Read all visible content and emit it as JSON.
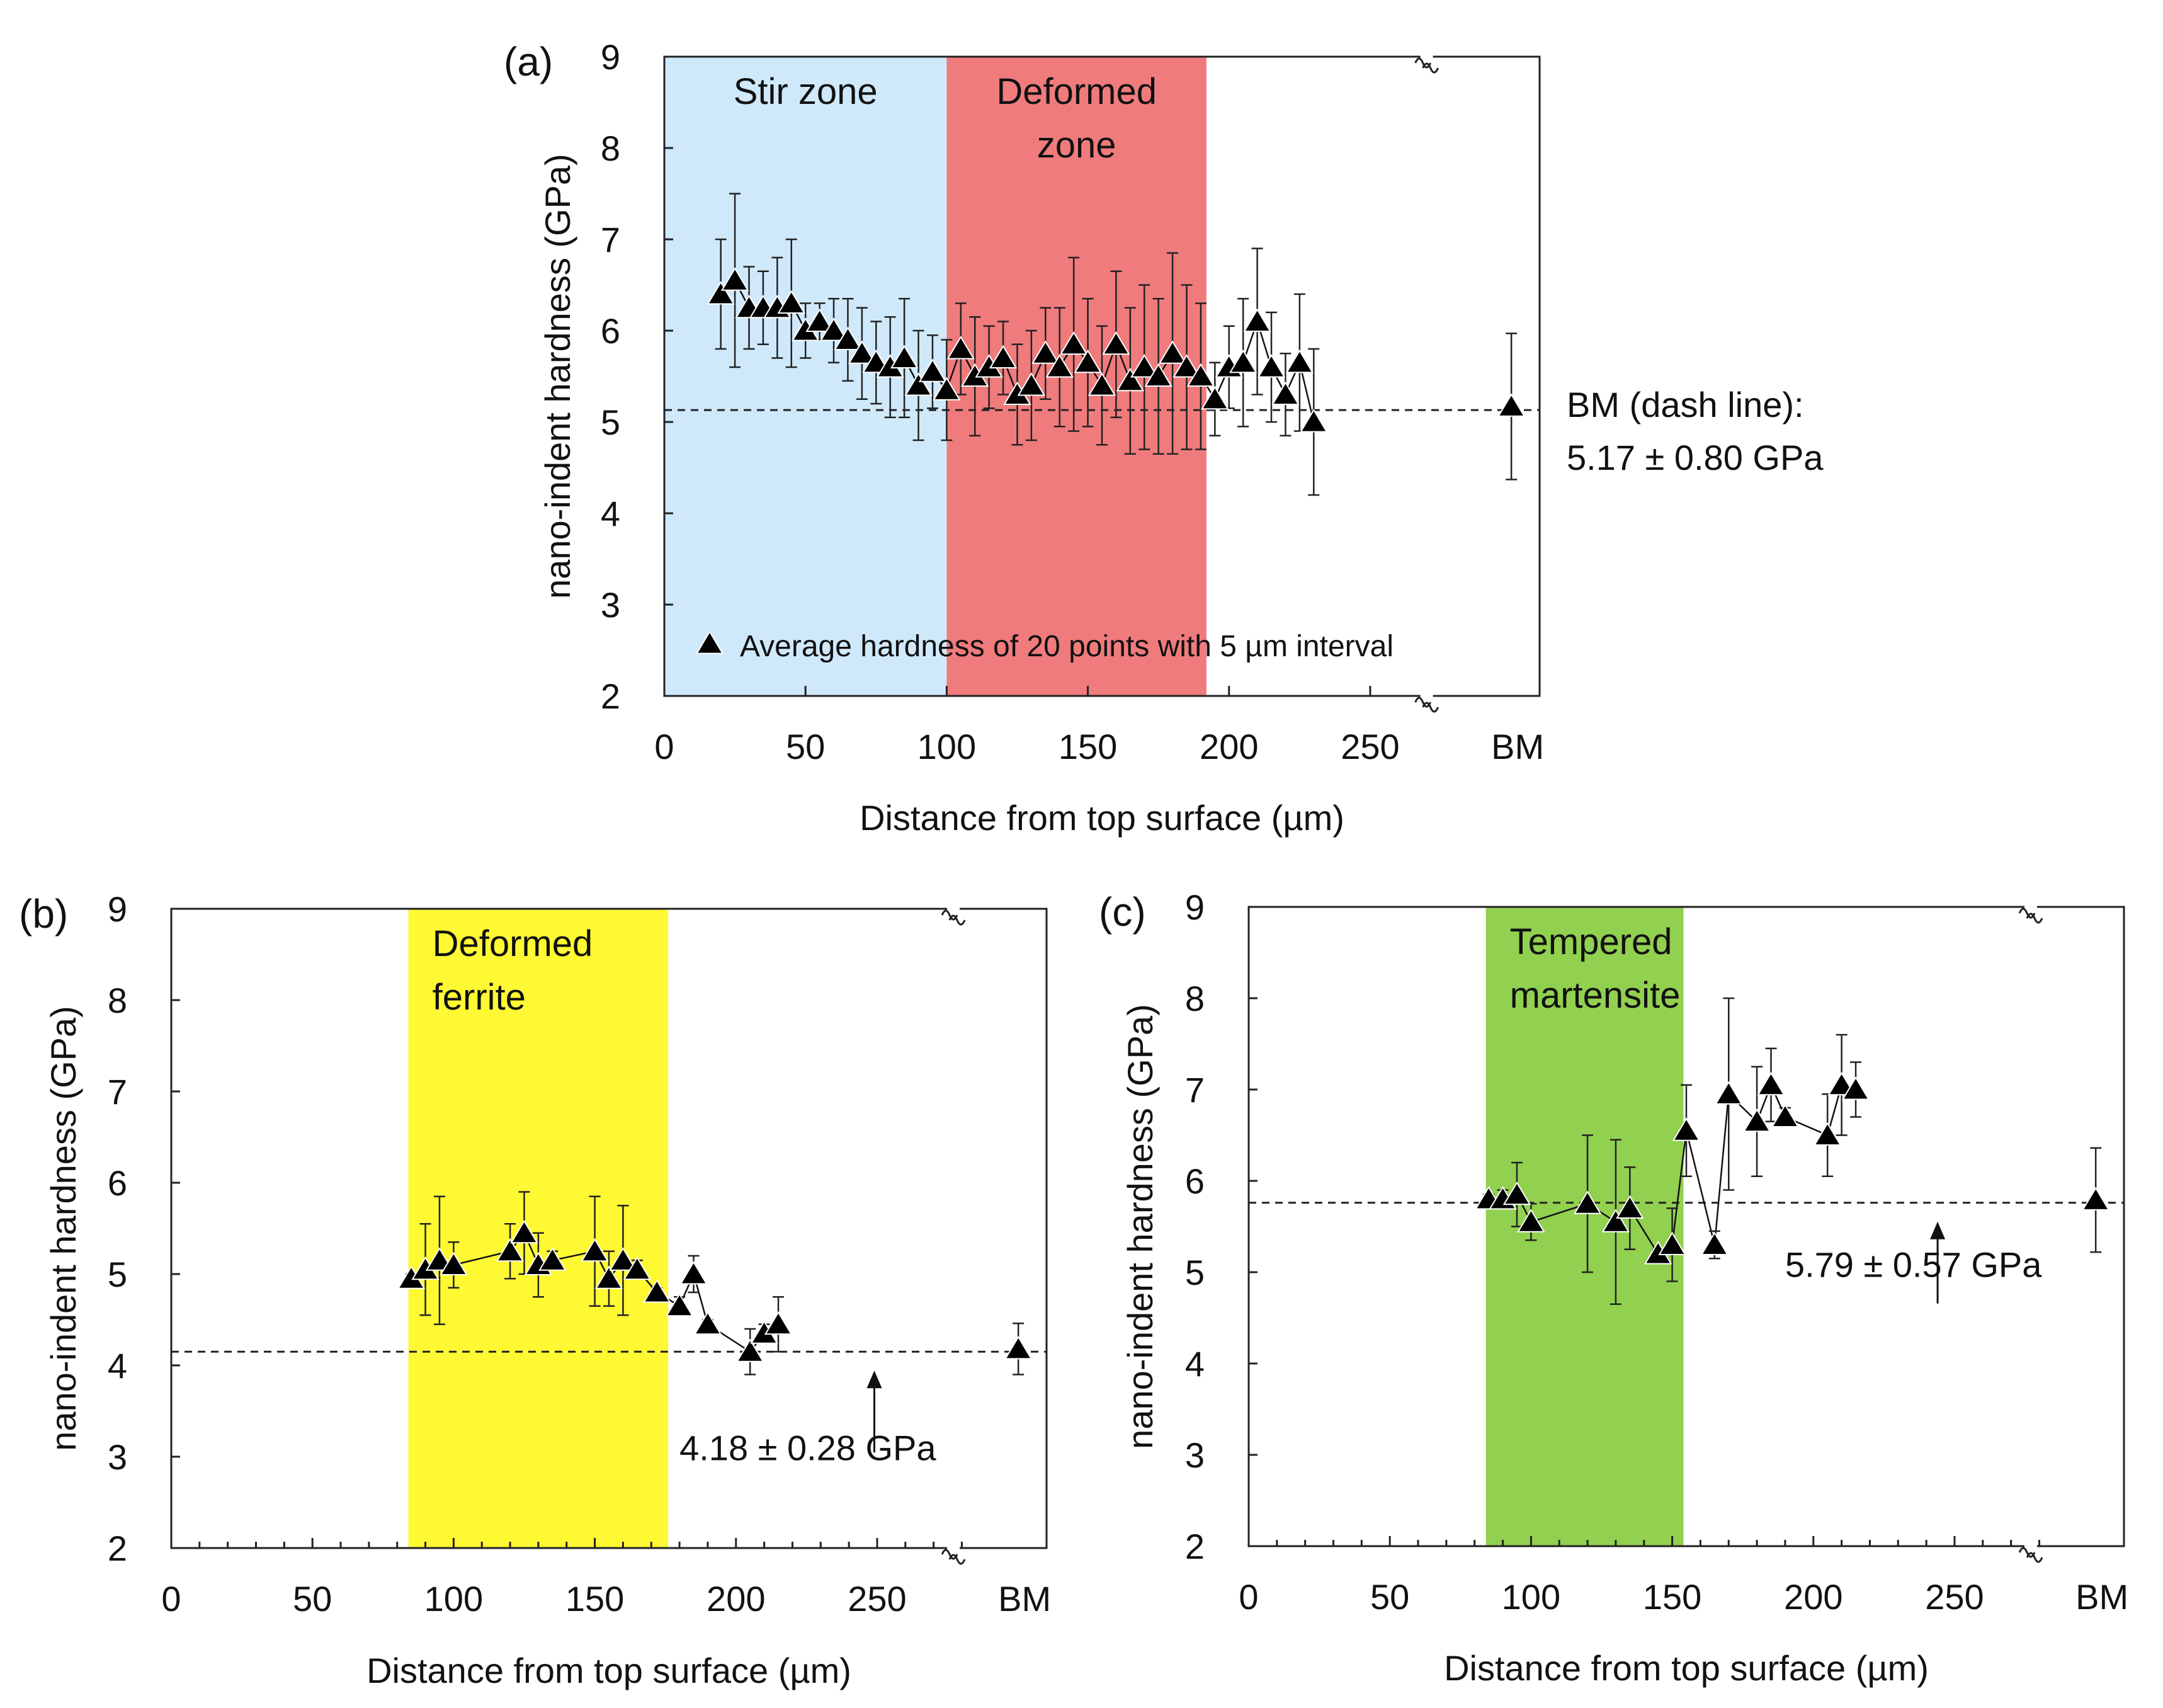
{
  "chart_data": [
    {
      "id": "a",
      "type": "scatter",
      "panel_label": "(a)",
      "xlabel": "Distance from top surface (µm)",
      "ylabel": "nano-indent hardness (GPa)",
      "xlim": [
        0,
        310
      ],
      "ylim": [
        2,
        9
      ],
      "x_ticks": [
        0,
        50,
        100,
        150,
        200,
        250
      ],
      "x_tick_labels": [
        "0",
        "50",
        "100",
        "150",
        "200",
        "250"
      ],
      "y_ticks": [
        2,
        3,
        4,
        5,
        6,
        7,
        8,
        9
      ],
      "y_tick_labels": [
        "2",
        "3",
        "4",
        "5",
        "6",
        "7",
        "8",
        "9"
      ],
      "bm_label": "BM",
      "bm_x": 300,
      "zones": [
        {
          "x0": 0,
          "x1": 100,
          "color": "#cfe9fb",
          "label_lines": [
            "Stir zone"
          ],
          "label_color": "#111111"
        },
        {
          "x0": 100,
          "x1": 192,
          "color": "#f07b7d",
          "label_lines": [
            "Deformed",
            "zone"
          ],
          "label_color": "#111111"
        }
      ],
      "reference": {
        "value": 5.13,
        "annotation": [
          "BM (dash line):",
          "5.17 ±  0.80 GPa"
        ]
      },
      "legend": "Average hardness of 20 points with 5 µm interval",
      "connect": true,
      "points": [
        {
          "x": 20,
          "y": 6.4,
          "err": 0.6
        },
        {
          "x": 25,
          "y": 6.55,
          "err": 0.95
        },
        {
          "x": 30,
          "y": 6.25,
          "err": 0.45
        },
        {
          "x": 35,
          "y": 6.25,
          "err": 0.4
        },
        {
          "x": 40,
          "y": 6.25,
          "err": 0.55
        },
        {
          "x": 45,
          "y": 6.3,
          "err": 0.7
        },
        {
          "x": 50,
          "y": 6.0,
          "err": 0.3
        },
        {
          "x": 55,
          "y": 6.1,
          "err": 0.2
        },
        {
          "x": 60,
          "y": 6.0,
          "err": 0.35
        },
        {
          "x": 65,
          "y": 5.9,
          "err": 0.45
        },
        {
          "x": 70,
          "y": 5.75,
          "err": 0.5
        },
        {
          "x": 75,
          "y": 5.65,
          "err": 0.45
        },
        {
          "x": 80,
          "y": 5.6,
          "err": 0.55
        },
        {
          "x": 85,
          "y": 5.7,
          "err": 0.65
        },
        {
          "x": 90,
          "y": 5.4,
          "err": 0.6
        },
        {
          "x": 95,
          "y": 5.55,
          "err": 0.4
        },
        {
          "x": 100,
          "y": 5.35,
          "err": 0.55
        },
        {
          "x": 105,
          "y": 5.8,
          "err": 0.5
        },
        {
          "x": 110,
          "y": 5.5,
          "err": 0.65
        },
        {
          "x": 115,
          "y": 5.6,
          "err": 0.45
        },
        {
          "x": 120,
          "y": 5.7,
          "err": 0.4
        },
        {
          "x": 125,
          "y": 5.3,
          "err": 0.55
        },
        {
          "x": 130,
          "y": 5.4,
          "err": 0.6
        },
        {
          "x": 135,
          "y": 5.75,
          "err": 0.5
        },
        {
          "x": 140,
          "y": 5.6,
          "err": 0.65
        },
        {
          "x": 145,
          "y": 5.85,
          "err": 0.95
        },
        {
          "x": 150,
          "y": 5.65,
          "err": 0.7
        },
        {
          "x": 155,
          "y": 5.4,
          "err": 0.65
        },
        {
          "x": 160,
          "y": 5.85,
          "err": 0.8
        },
        {
          "x": 165,
          "y": 5.45,
          "err": 0.8
        },
        {
          "x": 170,
          "y": 5.6,
          "err": 0.9
        },
        {
          "x": 175,
          "y": 5.5,
          "err": 0.85
        },
        {
          "x": 180,
          "y": 5.75,
          "err": 1.1
        },
        {
          "x": 185,
          "y": 5.6,
          "err": 0.9
        },
        {
          "x": 190,
          "y": 5.5,
          "err": 0.8
        },
        {
          "x": 195,
          "y": 5.25,
          "err": 0.4
        },
        {
          "x": 200,
          "y": 5.6,
          "err": 0.45
        },
        {
          "x": 205,
          "y": 5.65,
          "err": 0.7
        },
        {
          "x": 210,
          "y": 6.1,
          "err": 0.8
        },
        {
          "x": 215,
          "y": 5.6,
          "err": 0.6
        },
        {
          "x": 220,
          "y": 5.3,
          "err": 0.45
        },
        {
          "x": 225,
          "y": 5.65,
          "err": 0.75
        },
        {
          "x": 230,
          "y": 5.0,
          "err": 0.8
        }
      ],
      "bm_point": {
        "x": 300,
        "y": 5.17,
        "err": 0.8
      }
    },
    {
      "id": "b",
      "type": "scatter",
      "panel_label": "(b)",
      "xlabel": "Distance from top surface (µm)",
      "ylabel": "nano-indent hardness (GPa)",
      "xlim": [
        0,
        310
      ],
      "ylim": [
        2,
        9
      ],
      "x_ticks": [
        0,
        50,
        100,
        150,
        200,
        250
      ],
      "x_tick_labels": [
        "0",
        "50",
        "100",
        "150",
        "200",
        "250"
      ],
      "y_ticks": [
        2,
        3,
        4,
        5,
        6,
        7,
        8,
        9
      ],
      "y_tick_labels": [
        "2",
        "3",
        "4",
        "5",
        "6",
        "7",
        "8",
        "9"
      ],
      "bm_label": "BM",
      "bm_x": 300,
      "zones": [
        {
          "x0": 84,
          "x1": 176,
          "color": "#fef933",
          "label_lines": [
            "Deformed",
            "ferrite"
          ],
          "label_color": "#111111"
        }
      ],
      "reference": {
        "value": 4.15,
        "annotation": [
          "4.18 ±  0.28 GPa"
        ]
      },
      "arrow_x": 249,
      "connect": true,
      "points": [
        {
          "x": 85,
          "y": 4.95,
          "err": 0.05
        },
        {
          "x": 90,
          "y": 5.05,
          "err": 0.5
        },
        {
          "x": 95,
          "y": 5.15,
          "err": 0.7
        },
        {
          "x": 100,
          "y": 5.1,
          "err": 0.25
        },
        {
          "x": 120,
          "y": 5.25,
          "err": 0.3
        },
        {
          "x": 125,
          "y": 5.45,
          "err": 0.45
        },
        {
          "x": 130,
          "y": 5.1,
          "err": 0.35
        },
        {
          "x": 135,
          "y": 5.15,
          "err": 0.1
        },
        {
          "x": 150,
          "y": 5.25,
          "err": 0.6
        },
        {
          "x": 155,
          "y": 4.95,
          "err": 0.3
        },
        {
          "x": 160,
          "y": 5.15,
          "err": 0.6
        },
        {
          "x": 165,
          "y": 5.05,
          "err": 0.1
        },
        {
          "x": 172,
          "y": 4.8,
          "err": 0.05
        },
        {
          "x": 180,
          "y": 4.65,
          "err": 0.1
        },
        {
          "x": 185,
          "y": 5.0,
          "err": 0.2
        },
        {
          "x": 190,
          "y": 4.45,
          "err": 0.05
        },
        {
          "x": 205,
          "y": 4.15,
          "err": 0.25
        },
        {
          "x": 210,
          "y": 4.35,
          "err": 0.1
        },
        {
          "x": 215,
          "y": 4.45,
          "err": 0.3
        }
      ],
      "bm_point": {
        "x": 300,
        "y": 4.18,
        "err": 0.28
      }
    },
    {
      "id": "c",
      "type": "scatter",
      "panel_label": "(c)",
      "xlabel": "Distance from top surface (µm)",
      "ylabel": "nano-indent hardness (GPa)",
      "xlim": [
        0,
        310
      ],
      "ylim": [
        2,
        9
      ],
      "x_ticks": [
        0,
        50,
        100,
        150,
        200,
        250
      ],
      "x_tick_labels": [
        "0",
        "50",
        "100",
        "150",
        "200",
        "250"
      ],
      "y_ticks": [
        2,
        3,
        4,
        5,
        6,
        7,
        8,
        9
      ],
      "y_tick_labels": [
        "2",
        "3",
        "4",
        "5",
        "6",
        "7",
        "8",
        "9"
      ],
      "bm_label": "BM",
      "bm_x": 300,
      "zones": [
        {
          "x0": 84,
          "x1": 154,
          "color": "#92d050",
          "label_lines": [
            "Tempered",
            "martensite"
          ],
          "label_color": "#111111"
        }
      ],
      "reference": {
        "value": 5.76,
        "annotation": [
          "5.79 ±  0.57 GPa"
        ]
      },
      "arrow_x": 244,
      "connect": true,
      "points": [
        {
          "x": 85,
          "y": 5.8,
          "err": 0.05
        },
        {
          "x": 90,
          "y": 5.8,
          "err": 0.1
        },
        {
          "x": 95,
          "y": 5.85,
          "err": 0.35
        },
        {
          "x": 100,
          "y": 5.55,
          "err": 0.2
        },
        {
          "x": 120,
          "y": 5.75,
          "err": 0.75
        },
        {
          "x": 130,
          "y": 5.55,
          "err": 0.9
        },
        {
          "x": 135,
          "y": 5.7,
          "err": 0.45
        },
        {
          "x": 145,
          "y": 5.2,
          "err": 0.05
        },
        {
          "x": 150,
          "y": 5.3,
          "err": 0.4
        },
        {
          "x": 155,
          "y": 6.55,
          "err": 0.5
        },
        {
          "x": 165,
          "y": 5.3,
          "err": 0.15
        },
        {
          "x": 170,
          "y": 6.95,
          "err": 1.05
        },
        {
          "x": 180,
          "y": 6.65,
          "err": 0.6
        },
        {
          "x": 185,
          "y": 7.05,
          "err": 0.4
        },
        {
          "x": 190,
          "y": 6.7,
          "err": 0.1
        },
        {
          "x": 205,
          "y": 6.5,
          "err": 0.45
        },
        {
          "x": 210,
          "y": 7.05,
          "err": 0.55
        },
        {
          "x": 215,
          "y": 7.0,
          "err": 0.3
        }
      ],
      "bm_point": {
        "x": 300,
        "y": 5.79,
        "err": 0.57
      }
    }
  ]
}
